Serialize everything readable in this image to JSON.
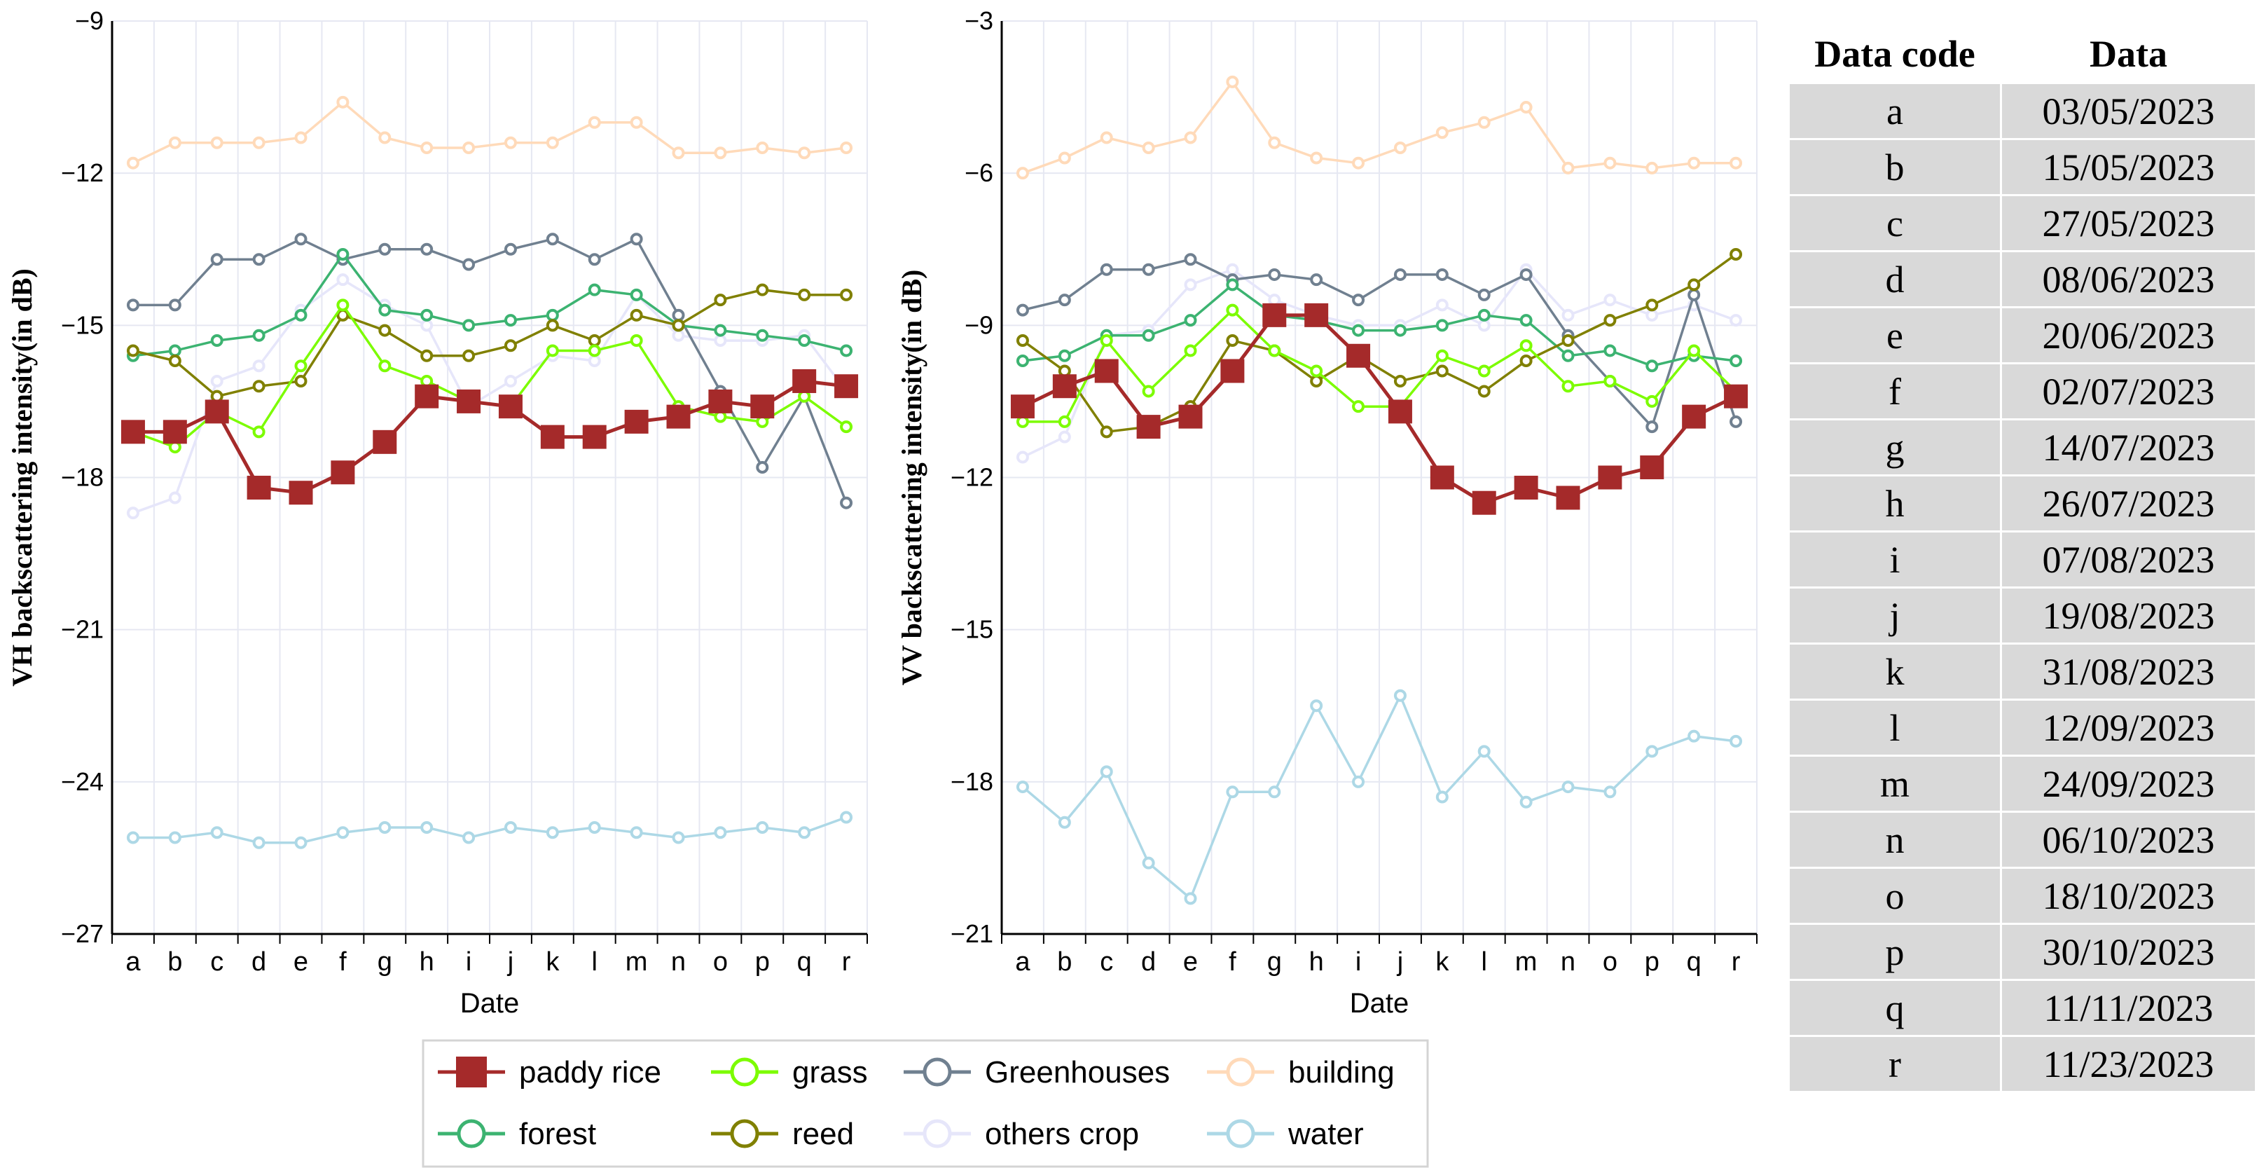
{
  "chart_data": [
    {
      "type": "line",
      "ylabel": "VH backscattering intensity(in dB)",
      "xlabel": "Date",
      "categories": [
        "a",
        "b",
        "c",
        "d",
        "e",
        "f",
        "g",
        "h",
        "i",
        "j",
        "k",
        "l",
        "m",
        "n",
        "o",
        "p",
        "q",
        "r"
      ],
      "ylim": [
        -27,
        -9
      ],
      "yticks": [
        -27,
        -24,
        -21,
        -18,
        -15,
        -12,
        -9
      ],
      "y_tick_labels": [
        "−27",
        "−24",
        "−21",
        "−18",
        "−15",
        "−12",
        "−9"
      ],
      "series": [
        {
          "name": "building",
          "values": [
            -11.8,
            -11.4,
            -11.4,
            -11.4,
            -11.3,
            -10.6,
            -11.3,
            -11.5,
            -11.5,
            -11.4,
            -11.4,
            -11.0,
            -11.0,
            -11.6,
            -11.6,
            -11.5,
            -11.6,
            -11.5
          ]
        },
        {
          "name": "others crop",
          "values": [
            -18.7,
            -18.4,
            -16.1,
            -15.8,
            -14.7,
            -14.1,
            -14.6,
            -15.0,
            -16.6,
            -16.1,
            -15.6,
            -15.7,
            -14.4,
            -15.2,
            -15.3,
            -15.3,
            -15.2,
            -16.3
          ]
        },
        {
          "name": "water",
          "values": [
            -25.1,
            -25.1,
            -25.0,
            -25.2,
            -25.2,
            -25.0,
            -24.9,
            -24.9,
            -25.1,
            -24.9,
            -25.0,
            -24.9,
            -25.0,
            -25.1,
            -25.0,
            -24.9,
            -25.0,
            -24.7
          ]
        },
        {
          "name": "Greenhouses",
          "values": [
            -14.6,
            -14.6,
            -13.7,
            -13.7,
            -13.3,
            -13.7,
            -13.5,
            -13.5,
            -13.8,
            -13.5,
            -13.3,
            -13.7,
            -13.3,
            -14.8,
            -16.3,
            -17.8,
            -16.4,
            -18.5
          ]
        },
        {
          "name": "forest",
          "values": [
            -15.6,
            -15.5,
            -15.3,
            -15.2,
            -14.8,
            -13.6,
            -14.7,
            -14.8,
            -15.0,
            -14.9,
            -14.8,
            -14.3,
            -14.4,
            -15.0,
            -15.1,
            -15.2,
            -15.3,
            -15.5
          ]
        },
        {
          "name": "reed",
          "values": [
            -15.5,
            -15.7,
            -16.4,
            -16.2,
            -16.1,
            -14.8,
            -15.1,
            -15.6,
            -15.6,
            -15.4,
            -15.0,
            -15.3,
            -14.8,
            -15.0,
            -14.5,
            -14.3,
            -14.4,
            -14.4
          ]
        },
        {
          "name": "grass",
          "values": [
            -17.1,
            -17.4,
            -16.7,
            -17.1,
            -15.8,
            -14.6,
            -15.8,
            -16.1,
            -16.5,
            -16.6,
            -15.5,
            -15.5,
            -15.3,
            -16.6,
            -16.8,
            -16.9,
            -16.4,
            -17.0
          ]
        },
        {
          "name": "paddy rice",
          "values": [
            -17.1,
            -17.1,
            -16.7,
            -18.2,
            -18.3,
            -17.9,
            -17.3,
            -16.4,
            -16.5,
            -16.6,
            -17.2,
            -17.2,
            -16.9,
            -16.8,
            -16.5,
            -16.6,
            -16.1,
            -16.2
          ]
        }
      ]
    },
    {
      "type": "line",
      "ylabel": "VV backscattering intensity(in dB)",
      "xlabel": "Date",
      "categories": [
        "a",
        "b",
        "c",
        "d",
        "e",
        "f",
        "g",
        "h",
        "i",
        "j",
        "k",
        "l",
        "m",
        "n",
        "o",
        "p",
        "q",
        "r"
      ],
      "ylim": [
        -21,
        -3
      ],
      "yticks": [
        -21,
        -18,
        -15,
        -12,
        -9,
        -6,
        -3
      ],
      "y_tick_labels": [
        "−21",
        "−18",
        "−15",
        "−12",
        "−9",
        "−6",
        "−3"
      ],
      "series": [
        {
          "name": "building",
          "values": [
            -6.0,
            -5.7,
            -5.3,
            -5.5,
            -5.3,
            -4.2,
            -5.4,
            -5.7,
            -5.8,
            -5.5,
            -5.2,
            -5.0,
            -4.7,
            -5.9,
            -5.8,
            -5.9,
            -5.8,
            -5.8
          ]
        },
        {
          "name": "others crop",
          "values": [
            -11.6,
            -11.2,
            -9.2,
            -9.1,
            -8.2,
            -7.9,
            -8.5,
            -8.8,
            -9.0,
            -9.0,
            -8.6,
            -9.0,
            -7.9,
            -8.8,
            -8.5,
            -8.8,
            -8.6,
            -8.9
          ]
        },
        {
          "name": "water",
          "values": [
            -18.1,
            -18.8,
            -17.8,
            -19.6,
            -20.3,
            -18.2,
            -18.2,
            -16.5,
            -18.0,
            -16.3,
            -18.3,
            -17.4,
            -18.4,
            -18.1,
            -18.2,
            -17.4,
            -17.1,
            -17.2
          ]
        },
        {
          "name": "Greenhouses",
          "values": [
            -8.7,
            -8.5,
            -7.9,
            -7.9,
            -7.7,
            -8.1,
            -8.0,
            -8.1,
            -8.5,
            -8.0,
            -8.0,
            -8.4,
            -8.0,
            -9.2,
            -10.1,
            -11.0,
            -8.4,
            -10.9
          ]
        },
        {
          "name": "forest",
          "values": [
            -9.7,
            -9.6,
            -9.2,
            -9.2,
            -8.9,
            -8.2,
            -8.8,
            -8.9,
            -9.1,
            -9.1,
            -9.0,
            -8.8,
            -8.9,
            -9.6,
            -9.5,
            -9.8,
            -9.6,
            -9.7
          ]
        },
        {
          "name": "reed",
          "values": [
            -9.3,
            -9.9,
            -11.1,
            -11.0,
            -10.6,
            -9.3,
            -9.5,
            -10.1,
            -9.6,
            -10.1,
            -9.9,
            -10.3,
            -9.7,
            -9.3,
            -8.9,
            -8.6,
            -8.2,
            -7.6
          ]
        },
        {
          "name": "grass",
          "values": [
            -10.9,
            -10.9,
            -9.3,
            -10.3,
            -9.5,
            -8.7,
            -9.5,
            -9.9,
            -10.6,
            -10.6,
            -9.6,
            -9.9,
            -9.4,
            -10.2,
            -10.1,
            -10.5,
            -9.5,
            -10.3
          ]
        },
        {
          "name": "paddy rice",
          "values": [
            -10.6,
            -10.2,
            -9.9,
            -11.0,
            -10.8,
            -9.9,
            -8.8,
            -8.8,
            -9.6,
            -10.7,
            -12.0,
            -12.5,
            -12.2,
            -12.4,
            -12.0,
            -11.8,
            -10.8,
            -10.4
          ]
        }
      ]
    }
  ],
  "series_styles": {
    "paddy rice": {
      "color": "#a52a2a",
      "marker": "square"
    },
    "grass": {
      "color": "#7cfc00",
      "marker": "circle"
    },
    "Greenhouses": {
      "color": "#708090",
      "marker": "circle"
    },
    "building": {
      "color": "#ffdab9",
      "marker": "circle"
    },
    "forest": {
      "color": "#3cb371",
      "marker": "circle"
    },
    "reed": {
      "color": "#808000",
      "marker": "circle"
    },
    "others crop": {
      "color": "#e6e6fa",
      "marker": "circle"
    },
    "water": {
      "color": "#add8e6",
      "marker": "circle"
    }
  },
  "legend": {
    "row1": [
      "paddy rice",
      "grass",
      "Greenhouses",
      "building"
    ],
    "row2": [
      "forest",
      "reed",
      "others crop",
      "water"
    ]
  },
  "table": {
    "headers": [
      "Data code",
      "Data"
    ],
    "rows": [
      [
        "a",
        "03/05/2023"
      ],
      [
        "b",
        "15/05/2023"
      ],
      [
        "c",
        "27/05/2023"
      ],
      [
        "d",
        "08/06/2023"
      ],
      [
        "e",
        "20/06/2023"
      ],
      [
        "f",
        "02/07/2023"
      ],
      [
        "g",
        "14/07/2023"
      ],
      [
        "h",
        "26/07/2023"
      ],
      [
        "i",
        "07/08/2023"
      ],
      [
        "j",
        "19/08/2023"
      ],
      [
        "k",
        "31/08/2023"
      ],
      [
        "l",
        "12/09/2023"
      ],
      [
        "m",
        "24/09/2023"
      ],
      [
        "n",
        "06/10/2023"
      ],
      [
        "o",
        "18/10/2023"
      ],
      [
        "p",
        "30/10/2023"
      ],
      [
        "q",
        "11/11/2023"
      ],
      [
        "r",
        "11/23/2023"
      ]
    ]
  }
}
